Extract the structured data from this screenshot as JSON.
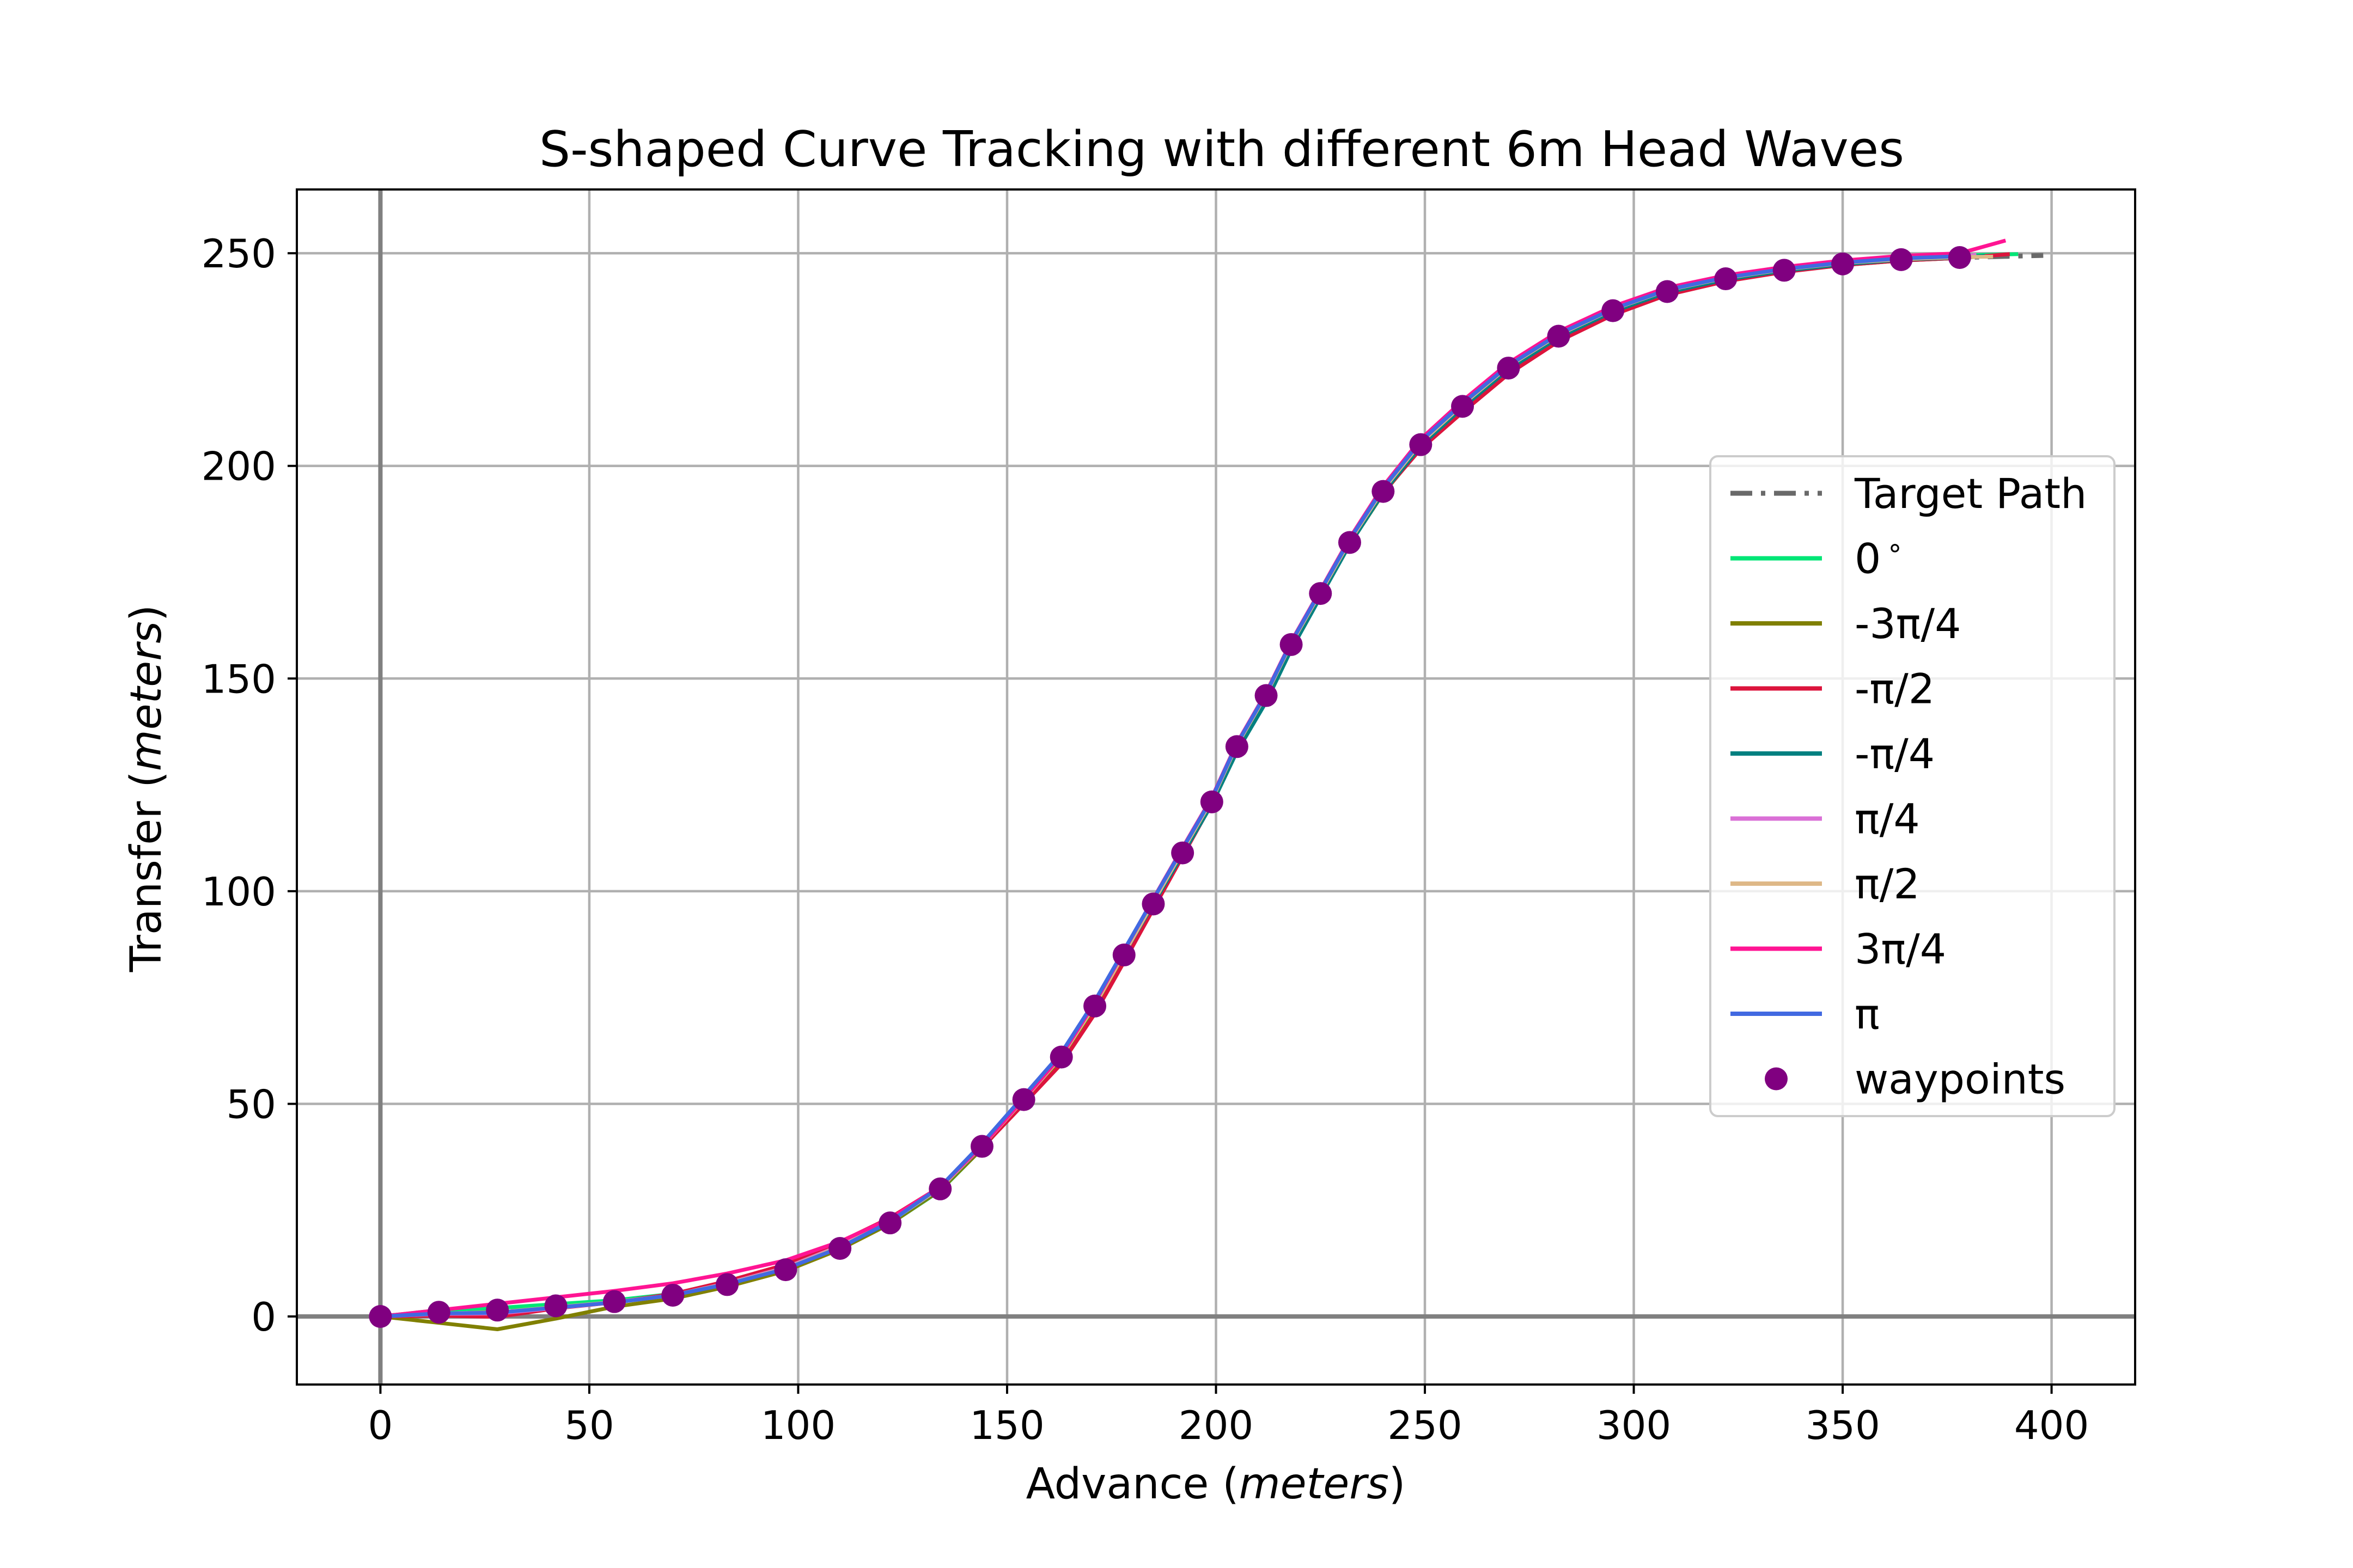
{
  "chart_data": {
    "type": "line",
    "title": "S-shaped Curve Tracking with different 6m Head Waves",
    "xlabel_text": "Advance",
    "xlabel_unit": "meters",
    "ylabel_text": "Transfer",
    "ylabel_unit": "meters",
    "xlim": [
      -20,
      420
    ],
    "ylim": [
      -16,
      265
    ],
    "xticks": [
      0,
      50,
      100,
      150,
      200,
      250,
      300,
      350,
      400
    ],
    "yticks": [
      0,
      50,
      100,
      150,
      200,
      250
    ],
    "xtick_labels": [
      "0",
      "50",
      "100",
      "150",
      "200",
      "250",
      "300",
      "350",
      "400"
    ],
    "ytick_labels": [
      "0",
      "50",
      "100",
      "150",
      "200",
      "250"
    ],
    "grid": true,
    "legend_position": "center-right",
    "target_path": {
      "name": "Target Path",
      "color": "#696969",
      "style": "dashdot",
      "x": [
        0,
        14,
        28,
        42,
        56,
        70,
        83,
        97,
        110,
        122,
        134,
        144,
        154,
        163,
        171,
        178,
        185,
        192,
        199,
        205,
        212,
        218,
        225,
        232,
        240,
        249,
        259,
        270,
        282,
        295,
        308,
        322,
        336,
        350,
        364,
        378,
        398
      ],
      "y": [
        0,
        1,
        1.5,
        2.5,
        3.5,
        5,
        7.5,
        11,
        16,
        22,
        30,
        40,
        51,
        61,
        73,
        85,
        97,
        109,
        121,
        134,
        146,
        158,
        170,
        182,
        194,
        205,
        214,
        223,
        230.5,
        236.5,
        241,
        244,
        246,
        247.5,
        248.5,
        249,
        249.5
      ]
    },
    "series": [
      {
        "name": "0$^\\circ$",
        "label_main": "0",
        "label_sup": "∘",
        "color": "#00e676",
        "offset": [
          0,
          0.5,
          0.5,
          0.4,
          0.3,
          0.3,
          0.2,
          0.1,
          0,
          -0.2,
          -0.4,
          -0.5,
          -0.3,
          -0.2,
          0,
          0.2,
          0.3,
          0.4,
          0.5,
          0.5,
          0.4,
          0.3,
          0.3,
          0.3,
          0.4,
          0.5,
          0.5,
          0.5,
          0.4,
          0.4,
          0.3,
          0.3,
          0.3,
          0.3,
          0.4,
          0.5,
          0.5
        ],
        "end_x": 392,
        "end_y": 249.8
      },
      {
        "name": "-3π/4",
        "label_main": "-3π/4",
        "label_sup": "",
        "color": "#808000",
        "offset": [
          0,
          -2.5,
          -4.5,
          -3,
          -1.2,
          -0.8,
          -0.5,
          -0.3,
          -0.2,
          -0.2,
          -0.3,
          -0.5,
          -0.4,
          -0.3,
          -0.2,
          -0.2,
          -0.3,
          -0.4,
          -0.5,
          -0.6,
          -0.5,
          -0.4,
          -0.4,
          -0.4,
          -0.5,
          -0.8,
          -0.8,
          -0.6,
          -0.5,
          -0.4,
          -0.3,
          -0.3,
          -0.3,
          -0.3,
          -0.2,
          -0.1,
          0
        ],
        "end_x": 384,
        "end_y": 249.3
      },
      {
        "name": "-π/2",
        "label_main": "-π/2",
        "label_sup": "",
        "color": "#dc143c",
        "offset": [
          0,
          -0.8,
          -1.6,
          -0.6,
          -0.2,
          0.3,
          0.8,
          1.2,
          1.5,
          1.2,
          0.5,
          -0.3,
          -1,
          -1.6,
          -1.8,
          -1.6,
          -1.2,
          -0.8,
          -0.4,
          0,
          0.3,
          0.5,
          0.5,
          0.3,
          -0.3,
          -1,
          -1.4,
          -1.4,
          -1.2,
          -1,
          -0.8,
          -0.6,
          -0.4,
          -0.3,
          -0.2,
          -0.1,
          0
        ],
        "end_x": 390,
        "end_y": 249.8
      },
      {
        "name": "-π/4",
        "label_main": "-π/4",
        "label_sup": "",
        "color": "#008080",
        "offset": [
          0,
          -0.3,
          -0.6,
          -0.4,
          -0.2,
          0,
          0.1,
          0.2,
          0.2,
          0.2,
          0.1,
          0,
          0.3,
          0.6,
          0.5,
          0.3,
          0,
          -0.3,
          -0.6,
          -1.2,
          -1.5,
          -1.2,
          -0.8,
          -0.5,
          -0.3,
          -0.3,
          -0.3,
          -0.3,
          -0.3,
          -0.2,
          -0.2,
          -0.2,
          -0.1,
          -0.1,
          0,
          0,
          0
        ],
        "end_x": 384,
        "end_y": 249.4
      },
      {
        "name": "π/4",
        "label_main": "π/4",
        "label_sup": "",
        "color": "#da70d6",
        "offset": [
          0,
          -0.4,
          -0.8,
          -0.5,
          -0.2,
          0,
          0.3,
          0.5,
          0.6,
          0.5,
          0.3,
          0.1,
          0,
          0.1,
          0.3,
          0.5,
          0.7,
          0.8,
          0.8,
          0.6,
          0.4,
          0.3,
          0.3,
          0.4,
          0.5,
          0.6,
          0.6,
          0.5,
          0.5,
          0.4,
          0.4,
          0.3,
          0.3,
          0.3,
          0.3,
          0.3,
          0.3
        ],
        "end_x": 382,
        "end_y": 249.6
      },
      {
        "name": "π/2",
        "label_main": "π/2",
        "label_sup": "",
        "color": "#deb887",
        "offset": [
          0,
          -0.3,
          -0.5,
          -0.3,
          -0.1,
          0,
          0.2,
          0.3,
          0.4,
          0.3,
          0.2,
          0.1,
          0,
          0.1,
          0.2,
          0.3,
          0.4,
          0.5,
          0.4,
          0.3,
          0.2,
          0.2,
          0.2,
          0.3,
          0.4,
          0.4,
          0.4,
          0.4,
          0.3,
          0.3,
          0.3,
          0.2,
          0.2,
          0.2,
          0.1,
          0.1,
          0
        ],
        "end_x": 386,
        "end_y": 249.2
      },
      {
        "name": "3π/4",
        "label_main": "3π/4",
        "label_sup": "",
        "color": "#ff1493",
        "offset": [
          0,
          0.5,
          1.5,
          2,
          2.5,
          2.8,
          2.6,
          2.2,
          1.6,
          1,
          0.5,
          0.2,
          0.2,
          0.4,
          0.8,
          1,
          1.2,
          1.2,
          1,
          0.8,
          0.7,
          0.7,
          0.8,
          1,
          1.2,
          1.3,
          1.3,
          1.2,
          1.1,
          1,
          0.9,
          0.8,
          0.8,
          0.8,
          0.9,
          1,
          1.3
        ],
        "end_x": 389,
        "end_y": 253
      },
      {
        "name": "π",
        "label_main": "π",
        "label_sup": "",
        "color": "#4169e1",
        "offset": [
          0,
          -0.3,
          -0.6,
          -0.4,
          -0.2,
          0,
          0.1,
          0.2,
          0.2,
          0.3,
          0.5,
          0.7,
          0.9,
          1,
          1.2,
          1.2,
          1.1,
          1,
          0.8,
          0.6,
          0.5,
          0.5,
          0.6,
          0.7,
          0.8,
          0.8,
          0.7,
          0.6,
          0.5,
          0.4,
          0.4,
          0.3,
          0.3,
          0.3,
          0.3,
          0.3,
          0.3
        ],
        "end_x": 380,
        "end_y": 249.6
      }
    ],
    "waypoints": {
      "name": "waypoints",
      "color": "#800080",
      "x": [
        0,
        14,
        28,
        42,
        56,
        70,
        83,
        97,
        110,
        122,
        134,
        144,
        154,
        163,
        171,
        178,
        185,
        192,
        199,
        205,
        212,
        218,
        225,
        232,
        240,
        249,
        259,
        270,
        282,
        295,
        308,
        322,
        336,
        350,
        364,
        378
      ],
      "y": [
        0,
        1,
        1.5,
        2.5,
        3.5,
        5,
        7.5,
        11,
        16,
        22,
        30,
        40,
        51,
        61,
        73,
        85,
        97,
        109,
        121,
        134,
        146,
        158,
        170,
        182,
        194,
        205,
        214,
        223,
        230.5,
        236.5,
        241,
        244,
        246,
        247.5,
        248.5,
        249
      ]
    }
  }
}
